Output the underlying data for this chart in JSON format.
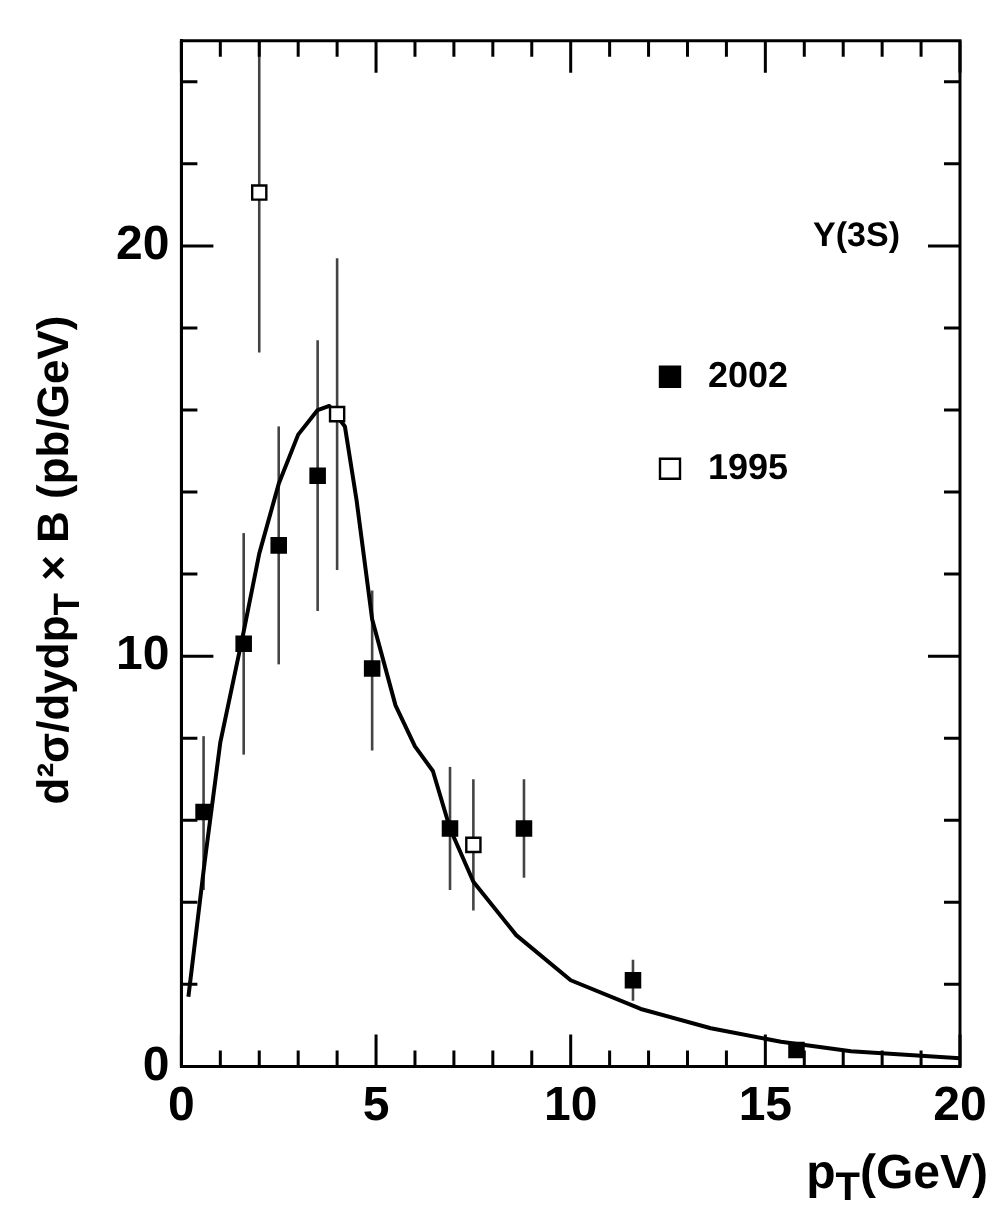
{
  "chart_data": {
    "type": "scatter",
    "xlabel": "p$_{T}$(GeV)",
    "ylabel": "d²σ/dydp$_{T}$ × B (pb/GeV)",
    "annotations": [
      "Υ(3S)"
    ],
    "xlim": [
      0,
      20
    ],
    "ylim": [
      0,
      25
    ],
    "xticks": [
      0,
      {
        "value": 1,
        "label": null
      },
      {
        "value": 2,
        "label": null
      },
      {
        "value": 3,
        "label": null
      },
      {
        "value": 4,
        "label": null
      },
      5,
      {
        "value": 6,
        "label": null
      },
      {
        "value": 7,
        "label": null
      },
      {
        "value": 8,
        "label": null
      },
      {
        "value": 9,
        "label": null
      },
      10,
      {
        "value": 11,
        "label": null
      },
      {
        "value": 12,
        "label": null
      },
      {
        "value": 13,
        "label": null
      },
      {
        "value": 14,
        "label": null
      },
      15,
      {
        "value": 16,
        "label": null
      },
      {
        "value": 17,
        "label": null
      },
      {
        "value": 18,
        "label": null
      },
      {
        "value": 19,
        "label": null
      },
      20
    ],
    "yticks": [
      0,
      {
        "value": 2,
        "label": null
      },
      {
        "value": 4,
        "label": null
      },
      {
        "value": 6,
        "label": null
      },
      {
        "value": 8,
        "label": null
      },
      10,
      {
        "value": 12,
        "label": null
      },
      {
        "value": 14,
        "label": null
      },
      {
        "value": 16,
        "label": null
      },
      {
        "value": 18,
        "label": null
      },
      20,
      {
        "value": 22,
        "label": null
      },
      {
        "value": 24,
        "label": null
      }
    ],
    "grid": false,
    "legend": "top right",
    "series": [
      {
        "name": "2002",
        "marker": "square",
        "color": "#000000",
        "x": [
          0.57,
          1.6,
          2.5,
          3.5,
          4.9,
          6.9,
          8.8,
          11.6,
          15.8
        ],
        "values": [
          6.2,
          10.3,
          12.7,
          14.4,
          9.7,
          5.8,
          5.8,
          2.1,
          0.4
        ],
        "errors": [
          [
            4.3,
            8.05
          ],
          [
            7.6,
            13.0
          ],
          [
            9.8,
            15.6
          ],
          [
            11.1,
            17.7
          ],
          [
            7.7,
            11.6
          ],
          [
            4.3,
            7.3
          ],
          [
            4.6,
            7.0
          ],
          [
            1.6,
            2.6
          ],
          null
        ]
      },
      {
        "name": "1995",
        "marker": "square",
        "color": "#ffffff",
        "x": [
          2.0,
          4.0,
          7.5
        ],
        "values": [
          21.3,
          15.9,
          5.4
        ],
        "errors": [
          [
            17.4,
            25
          ],
          [
            12.1,
            19.7
          ],
          [
            3.8,
            7.0
          ]
        ]
      },
      {
        "type": "line",
        "marker": "none",
        "color": "#000000",
        "x": [
          0.18,
          0.6,
          1.0,
          1.6,
          2.0,
          2.5,
          3.0,
          3.5,
          3.8,
          4.2,
          4.5,
          4.9,
          5.5,
          6.0,
          6.46,
          6.9,
          7.5,
          8.6,
          10,
          11.8,
          13.6,
          15.4,
          17.2,
          20
        ],
        "values": [
          1.7,
          5.0,
          7.9,
          10.6,
          12.5,
          14.2,
          15.4,
          16.0,
          16.1,
          15.6,
          13.8,
          10.9,
          8.8,
          7.8,
          7.2,
          5.8,
          4.5,
          3.2,
          2.1,
          1.4,
          0.93,
          0.6,
          0.37,
          0.2
        ]
      }
    ]
  }
}
